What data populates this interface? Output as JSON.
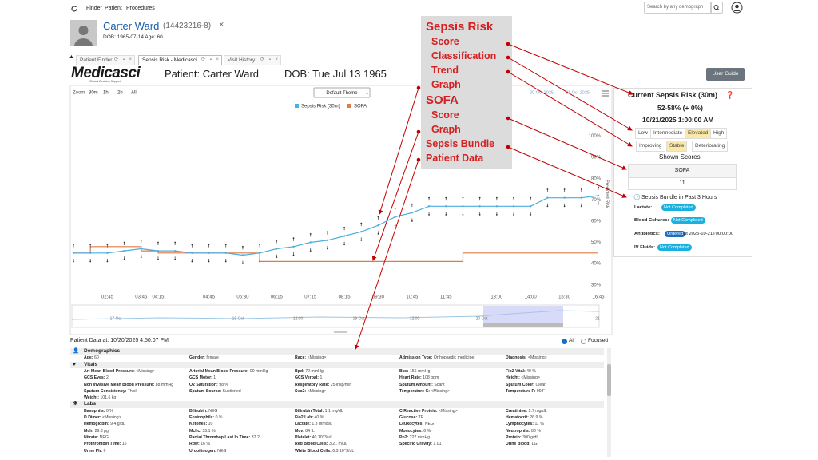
{
  "nav": {
    "menu": [
      "Finder",
      "Patient",
      "Procedures"
    ],
    "search_placeholder": "Search by any demograph"
  },
  "patient_header": {
    "name": "Carter Ward",
    "id": "(14423216-8)",
    "details": "DOB: 1965-07-14 Age: 60"
  },
  "tabs": [
    "Patient Finder",
    "Sepsis Risk - Medicasci",
    "Visit History"
  ],
  "banner": {
    "logo": "Medicasci",
    "logo_tagline": "Clinical Decision Support",
    "patient": "Patient: Carter Ward",
    "dob": "DOB: Tue Jul 13 1965",
    "button": "User Guide"
  },
  "chart_data": {
    "type": "line",
    "zoom_label": "Zoom",
    "zoom_options": [
      "30m",
      "1h",
      "2h",
      "All"
    ],
    "theme": "Default Theme",
    "date_range": [
      "20 Oct 2025",
      "21 Oct 2025"
    ],
    "y_label": "Predicted Risk",
    "categories": [
      null,
      null,
      "02:45",
      null,
      "03:45",
      "04:15",
      null,
      null,
      "04:45",
      null,
      "05:30",
      null,
      "06:15",
      null,
      "07:15",
      null,
      "08:15",
      null,
      "09:30",
      null,
      "10:45",
      null,
      "11:45",
      null,
      null,
      "13:00",
      null,
      "14:00",
      null,
      "15:30",
      null,
      "16:45"
    ],
    "series": [
      {
        "name": "Sepsis Risk (30m)",
        "color": "#4aaee0",
        "values": [
          45,
          45,
          45,
          46,
          47,
          46,
          46,
          45,
          45,
          45,
          44,
          45,
          47,
          48,
          50,
          51,
          53,
          55,
          58,
          62,
          64,
          67,
          67,
          67,
          67,
          67,
          67,
          67,
          71,
          71,
          71,
          72
        ],
        "errors": [
          4,
          4,
          4,
          4,
          4,
          4,
          4,
          4,
          4,
          4,
          4,
          4,
          4,
          4,
          4,
          4,
          4,
          4,
          4,
          4,
          4,
          4,
          4,
          4,
          4,
          4,
          4,
          4,
          4,
          4,
          4,
          4
        ]
      },
      {
        "name": "SOFA",
        "color": "#e07b45",
        "values": [
          45,
          48,
          48,
          48,
          46,
          45,
          45,
          45,
          45,
          45,
          45,
          41,
          41,
          41,
          41,
          41,
          41,
          41,
          41,
          41,
          41,
          41,
          41,
          45,
          45,
          45,
          45,
          45,
          45,
          45,
          45,
          45
        ]
      }
    ],
    "ylim": [
      25,
      119
    ],
    "yticks": [
      {
        "value": 30,
        "label": "30%"
      },
      {
        "value": 40,
        "label": "40%"
      },
      {
        "value": 50,
        "label": "50%"
      },
      {
        "value": 60,
        "label": "60%"
      },
      {
        "value": 70,
        "label": "70%"
      },
      {
        "value": 80,
        "label": "80%"
      },
      {
        "value": 90,
        "label": "90%"
      },
      {
        "value": 100,
        "label": "100%"
      }
    ],
    "grid": false,
    "navigator_labels": [
      "17 Oct",
      "18 Oct",
      "12:00",
      "19 Oct",
      "12:00",
      "20 Oct",
      "21"
    ]
  },
  "risk_panel": {
    "title": "Current Sepsis Risk (30m)",
    "score": "52-58% (+ 0%)",
    "timestamp": "10/21/2025 1:00:00 AM",
    "classification": [
      "Low",
      "Intermediate",
      "Elevated",
      "High"
    ],
    "classification_active": 2,
    "trend": [
      "Improving",
      "Stable",
      "Deteriorating"
    ],
    "trend_active": 1,
    "shown_scores_title": "Shown Scores",
    "score_table": {
      "header": "SOFA",
      "value": "11"
    },
    "bundle_title": "Sepsis Bundle in Past 3 Hours",
    "bundle": [
      {
        "label": "Lactate:",
        "status": "Not Completed"
      },
      {
        "label": "Blood Cultures:",
        "status": "Not Completed"
      },
      {
        "label": "Antibiotics:",
        "status": "Ordered",
        "note": "at 2025-10-21T00:00:00"
      },
      {
        "label": "IV Fluids:",
        "status": "Not Completed"
      }
    ]
  },
  "patient_data": {
    "title": "Patient Data at: 10/20/2025 4:50:07 PM",
    "filters": [
      "All",
      "Focused"
    ],
    "sections": [
      {
        "title": "Demographics",
        "fields": [
          {
            "label": "Age:",
            "value": "60"
          },
          {
            "label": "Gender:",
            "value": "female"
          },
          {
            "label": "Race:",
            "value": "<Missing>"
          },
          {
            "label": "Admission Type:",
            "value": "Orthopaedic medicine"
          },
          {
            "label": "Diagnosis:",
            "value": "<Missing>"
          }
        ]
      },
      {
        "title": "Vitals",
        "fields": [
          {
            "label": "Art Mean Blood Pressure:",
            "value": "<Missing>"
          },
          {
            "label": "Arterial Mean Blood Pressure:",
            "value": "90 mmHg"
          },
          {
            "label": "Bpd:",
            "value": "72 mmHg"
          },
          {
            "label": "Bps:",
            "value": "156 mmHg"
          },
          {
            "label": "Fio2 Vital:",
            "value": "40 %"
          },
          {
            "label": "GCS Eyes:",
            "value": "2"
          },
          {
            "label": "GCS Motor:",
            "value": "1"
          },
          {
            "label": "GCS Verbal:",
            "value": "1"
          },
          {
            "label": "Heart Rate:",
            "value": "108 bpm"
          },
          {
            "label": "Height:",
            "value": "<Missing>"
          },
          {
            "label": "Non Invasive Mean Blood Pressure:",
            "value": "88 mmHg"
          },
          {
            "label": "O2 Saturation:",
            "value": "98 %"
          },
          {
            "label": "Respiratory Rate:",
            "value": "25 insp/min"
          },
          {
            "label": "Sputum Amount:",
            "value": "Scant"
          },
          {
            "label": "Sputum Color:",
            "value": "Clear"
          },
          {
            "label": "Sputum Consistency:",
            "value": "Thick"
          },
          {
            "label": "Sputum Source:",
            "value": "Suctioned"
          },
          {
            "label": "Svo2:",
            "value": "<Missing>"
          },
          {
            "label": "Temperature C:",
            "value": "<Missing>"
          },
          {
            "label": "Temperature F:",
            "value": "99 F"
          },
          {
            "label": "Weight:",
            "value": "101.6 kg"
          }
        ]
      },
      {
        "title": "Labs",
        "fields": [
          {
            "label": "Basophils:",
            "value": "0 %"
          },
          {
            "label": "Bilirubin:",
            "value": "NEG"
          },
          {
            "label": "Bilirubin Total:",
            "value": "1.1 mg/dL"
          },
          {
            "label": "C Reactive Protein:",
            "value": "<Missing>"
          },
          {
            "label": "Creatinine:",
            "value": "2.7 mg/dL"
          },
          {
            "label": "D Dimer:",
            "value": "<Missing>"
          },
          {
            "label": "Eosinophils:",
            "value": "0 %"
          },
          {
            "label": "Fio2 Lab:",
            "value": "40 %"
          },
          {
            "label": "Glucose:",
            "value": "TR"
          },
          {
            "label": "Hematocrit:",
            "value": "26.9 %"
          },
          {
            "label": "Hemoglobin:",
            "value": "9.4 g/dL"
          },
          {
            "label": "Ketones:",
            "value": "10"
          },
          {
            "label": "Lactate:",
            "value": "1.3 mmol/L"
          },
          {
            "label": "Leukocytes:",
            "value": "NEG"
          },
          {
            "label": "Lymphocytes:",
            "value": "11 %"
          },
          {
            "label": "Mch:",
            "value": "29.3 pg"
          },
          {
            "label": "Mchc:",
            "value": "35.1 %"
          },
          {
            "label": "Mcv:",
            "value": "84 fL"
          },
          {
            "label": "Monocytes:",
            "value": "6 %"
          },
          {
            "label": "Neutrophils:",
            "value": "83 %"
          },
          {
            "label": "Nitrate:",
            "value": "NEG"
          },
          {
            "label": "Partial Thrombop Last In Time:",
            "value": "37.2"
          },
          {
            "label": "Platelet:",
            "value": "40 10^3/uL"
          },
          {
            "label": "Po2:",
            "value": "227 mmHg"
          },
          {
            "label": "Protein:",
            "value": "300 g/dL"
          },
          {
            "label": "Prothrombin Time:",
            "value": "16"
          },
          {
            "label": "Rdw:",
            "value": "16 %"
          },
          {
            "label": "Red Blood Cells:",
            "value": "3.21 m/uL"
          },
          {
            "label": "Specific Gravity:",
            "value": "1.01"
          },
          {
            "label": "Urine Blood:",
            "value": "LG"
          },
          {
            "label": "Urine Ph:",
            "value": "6"
          },
          {
            "label": "Urobilinogen:",
            "value": "NEG"
          },
          {
            "label": "White Blood Cells:",
            "value": "6.3 10^3/uL"
          }
        ]
      }
    ]
  },
  "annotations": [
    "Sepsis Risk",
    "Score",
    "Classification",
    "Trend",
    "Graph",
    "SOFA",
    "Score",
    "Graph",
    "Sepsis Bundle",
    "Patient Data"
  ]
}
